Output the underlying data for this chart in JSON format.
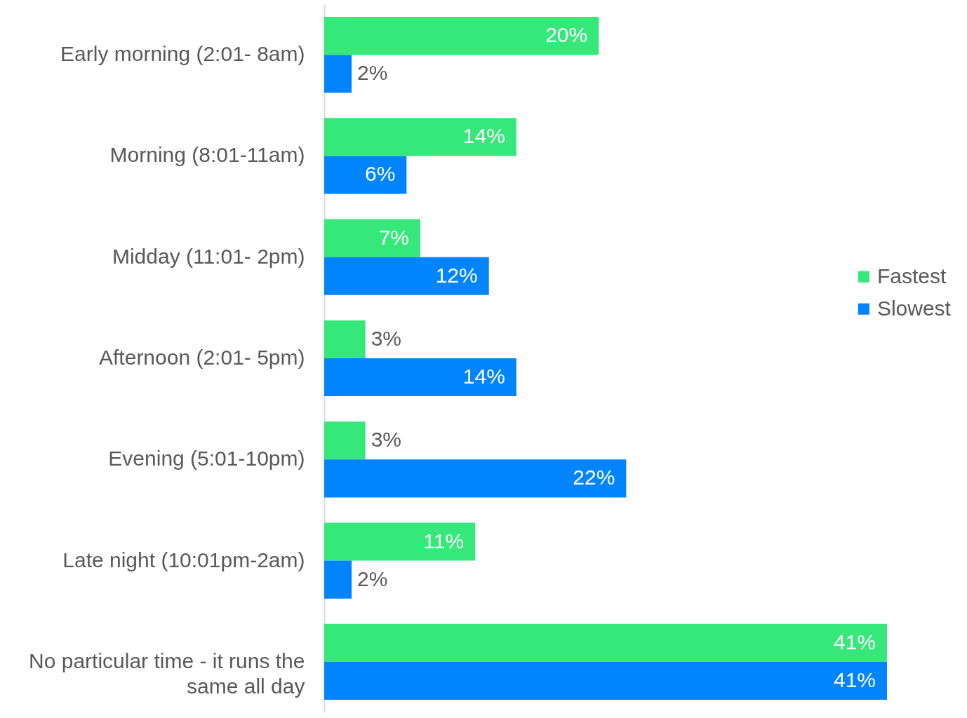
{
  "chart_data": {
    "type": "bar",
    "orientation": "horizontal",
    "categories": [
      "Early morning (2:01- 8am)",
      "Morning (8:01-11am)",
      "Midday (11:01- 2pm)",
      "Afternoon (2:01- 5pm)",
      "Evening (5:01-10pm)",
      "Late night (10:01pm-2am)",
      "No particular time - it runs the same all day"
    ],
    "series": [
      {
        "name": "Fastest",
        "color": "#36e87a",
        "values": [
          20,
          14,
          7,
          3,
          3,
          11,
          41
        ],
        "value_labels": [
          "20%",
          "14%",
          "7%",
          "3%",
          "3%",
          "11%",
          "41%"
        ]
      },
      {
        "name": "Slowest",
        "color": "#0084ff",
        "values": [
          2,
          6,
          12,
          14,
          22,
          2,
          41
        ],
        "value_labels": [
          "2%",
          "6%",
          "12%",
          "14%",
          "22%",
          "2%",
          "41%"
        ]
      }
    ],
    "legend": "right"
  }
}
